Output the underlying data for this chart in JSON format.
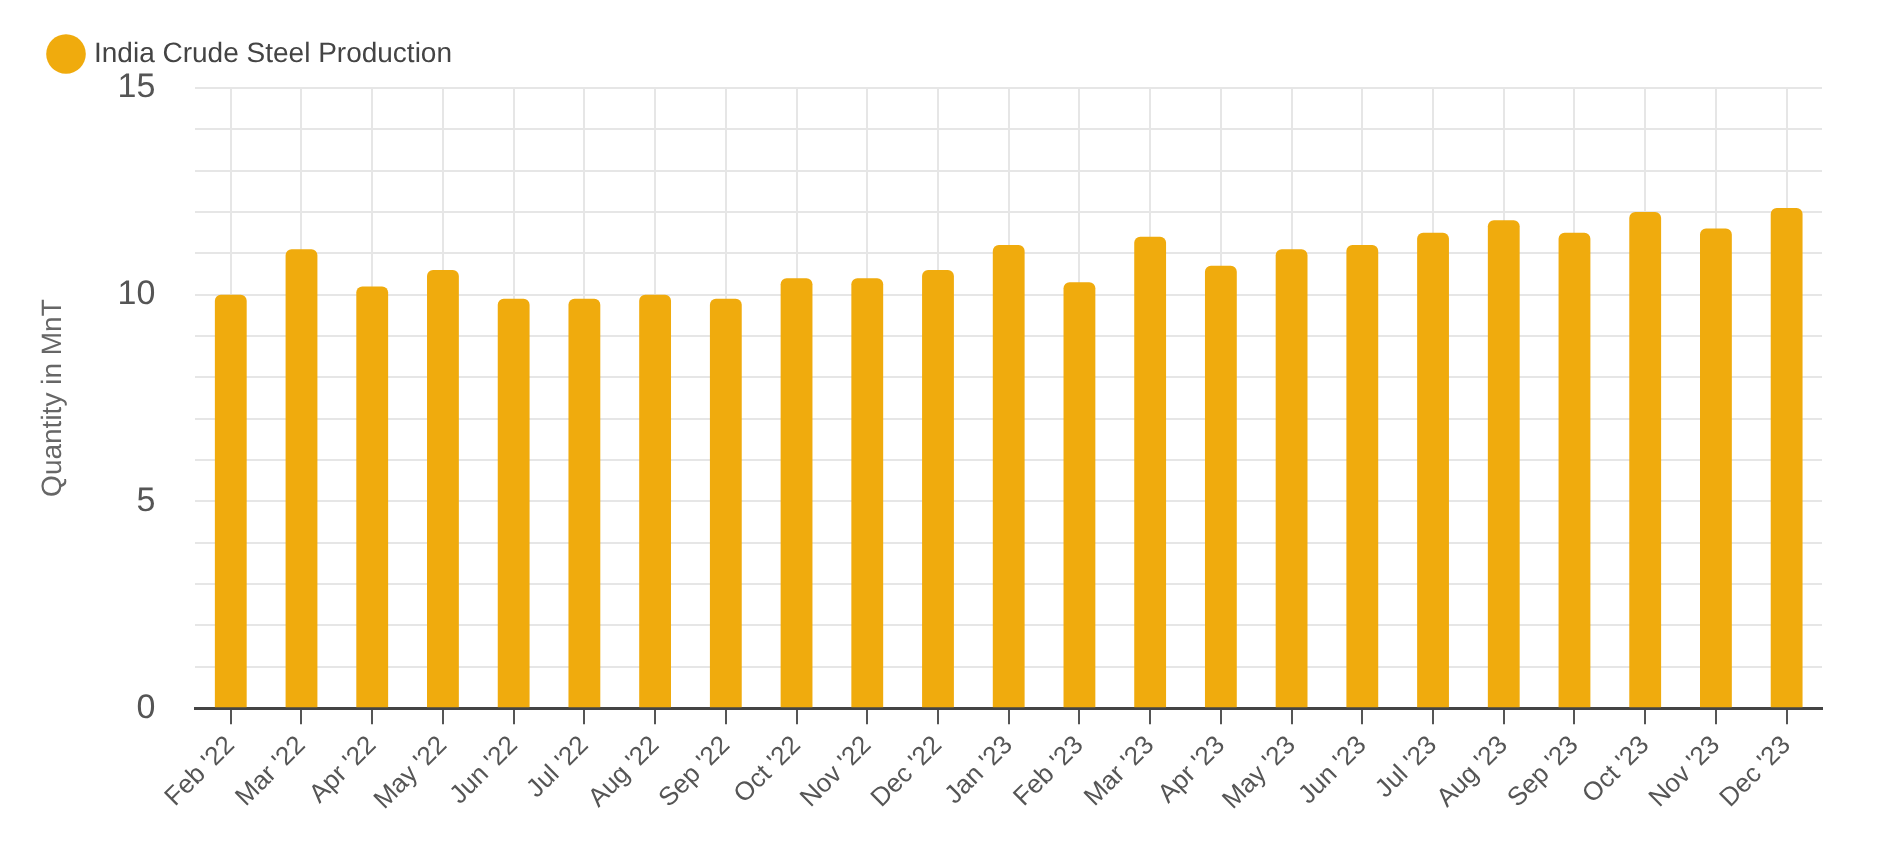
{
  "chart_data": {
    "type": "bar",
    "ylabel": "Quantity in MnT",
    "categories": [
      "Feb '22",
      "Mar '22",
      "Apr '22",
      "May '22",
      "Jun '22",
      "Jul '22",
      "Aug '22",
      "Sep '22",
      "Oct '22",
      "Nov '22",
      "Dec '22",
      "Jan '23",
      "Feb '23",
      "Mar '23",
      "Apr '23",
      "May '23",
      "Jun '23",
      "Jul '23",
      "Aug '23",
      "Sep '23",
      "Oct '23",
      "Nov '23",
      "Dec '23"
    ],
    "series": [
      {
        "name": "India Crude Steel Production",
        "color": "#f0ab0d",
        "values": [
          10.0,
          11.1,
          10.2,
          10.6,
          9.9,
          9.9,
          10.0,
          9.9,
          10.4,
          10.4,
          10.6,
          11.2,
          10.3,
          11.4,
          10.7,
          11.1,
          11.2,
          11.5,
          11.8,
          11.5,
          12.0,
          11.6,
          12.1
        ]
      }
    ],
    "ylim": [
      0,
      15
    ],
    "yticks": [
      0,
      {
        "value": 1,
        "label": null
      },
      {
        "value": 2,
        "label": null
      },
      {
        "value": 3,
        "label": null
      },
      {
        "value": 4,
        "label": null
      },
      5,
      {
        "value": 6,
        "label": null
      },
      {
        "value": 7,
        "label": null
      },
      {
        "value": 8,
        "label": null
      },
      {
        "value": 9,
        "label": null
      },
      10,
      {
        "value": 11,
        "label": null
      },
      {
        "value": 12,
        "label": null
      },
      {
        "value": 13,
        "label": null
      },
      {
        "value": 14,
        "label": null
      },
      15
    ],
    "grid": true,
    "legend": "top left"
  }
}
